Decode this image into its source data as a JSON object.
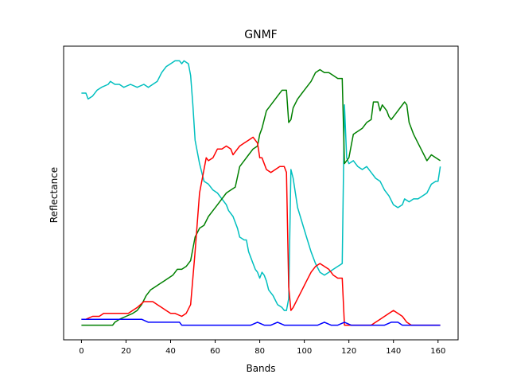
{
  "chart_data": {
    "type": "line",
    "title": "GNMF",
    "xlabel": "Bands",
    "ylabel": "Reflectance",
    "xlim": [
      -8,
      169
    ],
    "ylim": [
      0,
      1
    ],
    "xticks": [
      0,
      20,
      40,
      60,
      80,
      100,
      120,
      140,
      160
    ],
    "yticks_shown": false,
    "grid": false,
    "legend": "none",
    "series": [
      {
        "color": "#00bfbf",
        "points": [
          [
            0,
            0.84
          ],
          [
            2,
            0.84
          ],
          [
            3,
            0.82
          ],
          [
            5,
            0.83
          ],
          [
            7,
            0.85
          ],
          [
            9,
            0.86
          ],
          [
            12,
            0.87
          ],
          [
            13,
            0.88
          ],
          [
            15,
            0.87
          ],
          [
            17,
            0.87
          ],
          [
            19,
            0.86
          ],
          [
            22,
            0.87
          ],
          [
            25,
            0.86
          ],
          [
            28,
            0.87
          ],
          [
            30,
            0.86
          ],
          [
            32,
            0.87
          ],
          [
            34,
            0.88
          ],
          [
            36,
            0.91
          ],
          [
            38,
            0.93
          ],
          [
            40,
            0.94
          ],
          [
            42,
            0.95
          ],
          [
            44,
            0.95
          ],
          [
            45,
            0.94
          ],
          [
            46,
            0.95
          ],
          [
            48,
            0.94
          ],
          [
            49,
            0.9
          ],
          [
            50,
            0.8
          ],
          [
            51,
            0.68
          ],
          [
            53,
            0.6
          ],
          [
            55,
            0.54
          ],
          [
            57,
            0.53
          ],
          [
            59,
            0.51
          ],
          [
            61,
            0.5
          ],
          [
            63,
            0.48
          ],
          [
            65,
            0.46
          ],
          [
            66,
            0.44
          ],
          [
            68,
            0.42
          ],
          [
            70,
            0.38
          ],
          [
            71,
            0.35
          ],
          [
            73,
            0.34
          ],
          [
            74,
            0.34
          ],
          [
            75,
            0.3
          ],
          [
            76,
            0.28
          ],
          [
            77,
            0.26
          ],
          [
            78,
            0.24
          ],
          [
            79,
            0.23
          ],
          [
            80,
            0.21
          ],
          [
            81,
            0.23
          ],
          [
            82,
            0.22
          ],
          [
            83,
            0.2
          ],
          [
            84,
            0.17
          ],
          [
            86,
            0.15
          ],
          [
            88,
            0.12
          ],
          [
            90,
            0.11
          ],
          [
            91,
            0.1
          ],
          [
            92,
            0.1
          ],
          [
            93,
            0.14
          ],
          [
            94,
            0.58
          ],
          [
            95,
            0.55
          ],
          [
            96,
            0.5
          ],
          [
            97,
            0.45
          ],
          [
            99,
            0.4
          ],
          [
            101,
            0.35
          ],
          [
            103,
            0.3
          ],
          [
            105,
            0.26
          ],
          [
            107,
            0.23
          ],
          [
            109,
            0.22
          ],
          [
            111,
            0.23
          ],
          [
            113,
            0.24
          ],
          [
            115,
            0.25
          ],
          [
            117,
            0.26
          ],
          [
            118,
            0.8
          ],
          [
            119,
            0.62
          ],
          [
            120,
            0.6
          ],
          [
            122,
            0.61
          ],
          [
            124,
            0.59
          ],
          [
            126,
            0.58
          ],
          [
            128,
            0.59
          ],
          [
            130,
            0.57
          ],
          [
            132,
            0.55
          ],
          [
            134,
            0.54
          ],
          [
            136,
            0.51
          ],
          [
            138,
            0.49
          ],
          [
            140,
            0.46
          ],
          [
            142,
            0.45
          ],
          [
            144,
            0.46
          ],
          [
            145,
            0.48
          ],
          [
            147,
            0.47
          ],
          [
            149,
            0.48
          ],
          [
            151,
            0.48
          ],
          [
            153,
            0.49
          ],
          [
            155,
            0.5
          ],
          [
            157,
            0.53
          ],
          [
            159,
            0.54
          ],
          [
            160,
            0.54
          ],
          [
            161,
            0.59
          ]
        ]
      },
      {
        "color": "#008000",
        "points": [
          [
            0,
            0.05
          ],
          [
            5,
            0.05
          ],
          [
            10,
            0.05
          ],
          [
            14,
            0.05
          ],
          [
            15,
            0.06
          ],
          [
            17,
            0.07
          ],
          [
            20,
            0.08
          ],
          [
            23,
            0.09
          ],
          [
            25,
            0.1
          ],
          [
            27,
            0.12
          ],
          [
            29,
            0.15
          ],
          [
            31,
            0.17
          ],
          [
            33,
            0.18
          ],
          [
            35,
            0.19
          ],
          [
            37,
            0.2
          ],
          [
            39,
            0.21
          ],
          [
            41,
            0.22
          ],
          [
            43,
            0.24
          ],
          [
            45,
            0.24
          ],
          [
            47,
            0.25
          ],
          [
            49,
            0.27
          ],
          [
            51,
            0.35
          ],
          [
            53,
            0.38
          ],
          [
            55,
            0.39
          ],
          [
            57,
            0.42
          ],
          [
            59,
            0.44
          ],
          [
            61,
            0.46
          ],
          [
            63,
            0.48
          ],
          [
            65,
            0.5
          ],
          [
            67,
            0.51
          ],
          [
            69,
            0.52
          ],
          [
            71,
            0.59
          ],
          [
            73,
            0.61
          ],
          [
            75,
            0.63
          ],
          [
            77,
            0.65
          ],
          [
            79,
            0.66
          ],
          [
            80,
            0.7
          ],
          [
            81,
            0.72
          ],
          [
            83,
            0.78
          ],
          [
            85,
            0.8
          ],
          [
            87,
            0.82
          ],
          [
            88,
            0.83
          ],
          [
            90,
            0.85
          ],
          [
            92,
            0.85
          ],
          [
            93,
            0.74
          ],
          [
            94,
            0.75
          ],
          [
            95,
            0.79
          ],
          [
            97,
            0.82
          ],
          [
            99,
            0.84
          ],
          [
            101,
            0.86
          ],
          [
            103,
            0.88
          ],
          [
            105,
            0.91
          ],
          [
            107,
            0.92
          ],
          [
            109,
            0.91
          ],
          [
            111,
            0.91
          ],
          [
            113,
            0.9
          ],
          [
            115,
            0.89
          ],
          [
            117,
            0.89
          ],
          [
            118,
            0.6
          ],
          [
            120,
            0.62
          ],
          [
            122,
            0.7
          ],
          [
            124,
            0.71
          ],
          [
            126,
            0.72
          ],
          [
            128,
            0.74
          ],
          [
            130,
            0.75
          ],
          [
            131,
            0.81
          ],
          [
            133,
            0.81
          ],
          [
            134,
            0.78
          ],
          [
            135,
            0.8
          ],
          [
            137,
            0.78
          ],
          [
            138,
            0.76
          ],
          [
            139,
            0.75
          ],
          [
            141,
            0.77
          ],
          [
            143,
            0.79
          ],
          [
            145,
            0.81
          ],
          [
            146,
            0.8
          ],
          [
            147,
            0.74
          ],
          [
            149,
            0.7
          ],
          [
            151,
            0.67
          ],
          [
            153,
            0.64
          ],
          [
            155,
            0.61
          ],
          [
            157,
            0.63
          ],
          [
            159,
            0.62
          ],
          [
            161,
            0.61
          ]
        ]
      },
      {
        "color": "#ff0000",
        "points": [
          [
            0,
            0.07
          ],
          [
            2,
            0.07
          ],
          [
            5,
            0.08
          ],
          [
            8,
            0.08
          ],
          [
            10,
            0.09
          ],
          [
            13,
            0.09
          ],
          [
            17,
            0.09
          ],
          [
            21,
            0.09
          ],
          [
            25,
            0.11
          ],
          [
            28,
            0.13
          ],
          [
            30,
            0.13
          ],
          [
            32,
            0.13
          ],
          [
            34,
            0.12
          ],
          [
            36,
            0.11
          ],
          [
            38,
            0.1
          ],
          [
            40,
            0.09
          ],
          [
            42,
            0.09
          ],
          [
            45,
            0.08
          ],
          [
            47,
            0.09
          ],
          [
            49,
            0.12
          ],
          [
            51,
            0.3
          ],
          [
            53,
            0.5
          ],
          [
            55,
            0.58
          ],
          [
            56,
            0.62
          ],
          [
            57,
            0.61
          ],
          [
            59,
            0.62
          ],
          [
            61,
            0.65
          ],
          [
            63,
            0.65
          ],
          [
            65,
            0.66
          ],
          [
            67,
            0.65
          ],
          [
            68,
            0.63
          ],
          [
            69,
            0.64
          ],
          [
            71,
            0.66
          ],
          [
            73,
            0.67
          ],
          [
            75,
            0.68
          ],
          [
            77,
            0.69
          ],
          [
            79,
            0.67
          ],
          [
            80,
            0.62
          ],
          [
            81,
            0.62
          ],
          [
            83,
            0.58
          ],
          [
            85,
            0.57
          ],
          [
            87,
            0.58
          ],
          [
            89,
            0.59
          ],
          [
            91,
            0.59
          ],
          [
            92,
            0.57
          ],
          [
            93,
            0.18
          ],
          [
            94,
            0.1
          ],
          [
            95,
            0.11
          ],
          [
            97,
            0.14
          ],
          [
            99,
            0.17
          ],
          [
            101,
            0.2
          ],
          [
            103,
            0.23
          ],
          [
            105,
            0.25
          ],
          [
            107,
            0.26
          ],
          [
            109,
            0.25
          ],
          [
            111,
            0.24
          ],
          [
            113,
            0.22
          ],
          [
            115,
            0.21
          ],
          [
            117,
            0.21
          ],
          [
            118,
            0.05
          ],
          [
            120,
            0.05
          ],
          [
            122,
            0.05
          ],
          [
            124,
            0.05
          ],
          [
            126,
            0.05
          ],
          [
            128,
            0.05
          ],
          [
            130,
            0.05
          ],
          [
            132,
            0.06
          ],
          [
            134,
            0.07
          ],
          [
            136,
            0.08
          ],
          [
            138,
            0.09
          ],
          [
            140,
            0.1
          ],
          [
            142,
            0.09
          ],
          [
            144,
            0.08
          ],
          [
            146,
            0.06
          ],
          [
            148,
            0.05
          ],
          [
            150,
            0.05
          ],
          [
            153,
            0.05
          ],
          [
            156,
            0.05
          ],
          [
            159,
            0.05
          ],
          [
            161,
            0.05
          ]
        ]
      },
      {
        "color": "#0000ff",
        "points": [
          [
            0,
            0.07
          ],
          [
            3,
            0.07
          ],
          [
            6,
            0.07
          ],
          [
            9,
            0.07
          ],
          [
            12,
            0.07
          ],
          [
            15,
            0.07
          ],
          [
            18,
            0.07
          ],
          [
            21,
            0.07
          ],
          [
            24,
            0.07
          ],
          [
            27,
            0.07
          ],
          [
            30,
            0.06
          ],
          [
            33,
            0.06
          ],
          [
            36,
            0.06
          ],
          [
            39,
            0.06
          ],
          [
            42,
            0.06
          ],
          [
            44,
            0.06
          ],
          [
            45,
            0.05
          ],
          [
            48,
            0.05
          ],
          [
            51,
            0.05
          ],
          [
            53,
            0.05
          ],
          [
            55,
            0.05
          ],
          [
            58,
            0.05
          ],
          [
            61,
            0.05
          ],
          [
            64,
            0.05
          ],
          [
            67,
            0.05
          ],
          [
            70,
            0.05
          ],
          [
            73,
            0.05
          ],
          [
            76,
            0.05
          ],
          [
            79,
            0.06
          ],
          [
            82,
            0.05
          ],
          [
            85,
            0.05
          ],
          [
            88,
            0.06
          ],
          [
            91,
            0.05
          ],
          [
            94,
            0.05
          ],
          [
            97,
            0.05
          ],
          [
            100,
            0.05
          ],
          [
            103,
            0.05
          ],
          [
            106,
            0.05
          ],
          [
            109,
            0.06
          ],
          [
            112,
            0.05
          ],
          [
            115,
            0.05
          ],
          [
            118,
            0.06
          ],
          [
            121,
            0.05
          ],
          [
            124,
            0.05
          ],
          [
            127,
            0.05
          ],
          [
            130,
            0.05
          ],
          [
            133,
            0.05
          ],
          [
            136,
            0.05
          ],
          [
            139,
            0.06
          ],
          [
            142,
            0.06
          ],
          [
            144,
            0.05
          ],
          [
            146,
            0.05
          ],
          [
            149,
            0.05
          ],
          [
            152,
            0.05
          ],
          [
            155,
            0.05
          ],
          [
            158,
            0.05
          ],
          [
            161,
            0.05
          ]
        ]
      }
    ]
  }
}
